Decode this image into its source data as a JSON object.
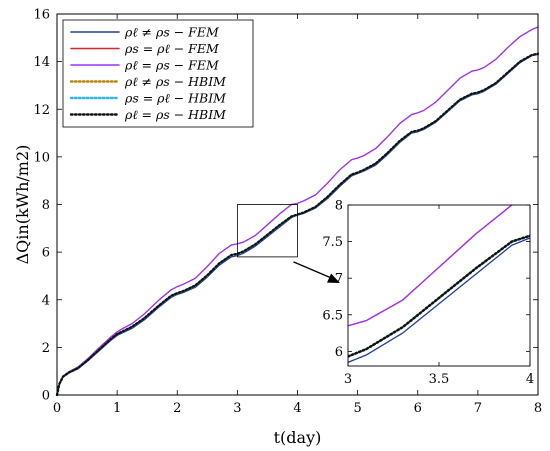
{
  "chart_data": {
    "type": "line",
    "xlabel": "t(day)",
    "ylabel": "ΔQin(kWh/m2)",
    "xlim": [
      0,
      8
    ],
    "ylim": [
      0,
      16
    ],
    "xticks": [
      0,
      1,
      2,
      3,
      4,
      5,
      6,
      7,
      8
    ],
    "yticks": [
      0,
      2,
      4,
      6,
      8,
      10,
      12,
      14,
      16
    ],
    "grid": false,
    "legend_position": "top-left",
    "series": [
      {
        "name": "ρℓ ≠ ρs − FEM",
        "color": "#1f3f99",
        "style": "solid",
        "x": [
          0,
          0.04,
          0.1,
          0.2,
          0.35,
          0.5,
          0.7,
          0.9,
          1.0,
          1.1,
          1.25,
          1.45,
          1.7,
          1.9,
          2.0,
          2.1,
          2.3,
          2.5,
          2.7,
          2.9,
          3.0,
          3.1,
          3.3,
          3.5,
          3.7,
          3.9,
          4.0,
          4.1,
          4.3,
          4.5,
          4.7,
          4.9,
          5.0,
          5.1,
          5.3,
          5.5,
          5.7,
          5.9,
          6.0,
          6.1,
          6.3,
          6.5,
          6.7,
          6.9,
          7.0,
          7.1,
          7.3,
          7.5,
          7.7,
          7.9,
          8.0
        ],
        "y": [
          0,
          0.45,
          0.75,
          0.92,
          1.1,
          1.4,
          1.85,
          2.3,
          2.5,
          2.62,
          2.8,
          3.15,
          3.7,
          4.1,
          4.22,
          4.3,
          4.52,
          4.95,
          5.45,
          5.8,
          5.85,
          5.95,
          6.25,
          6.65,
          7.05,
          7.45,
          7.55,
          7.62,
          7.85,
          8.25,
          8.75,
          9.2,
          9.3,
          9.4,
          9.65,
          10.1,
          10.6,
          11.0,
          11.05,
          11.15,
          11.45,
          11.9,
          12.35,
          12.6,
          12.65,
          12.75,
          13.05,
          13.5,
          13.95,
          14.25,
          14.3
        ]
      },
      {
        "name": "ρs = ρℓ − FEM",
        "color": "#d62728",
        "style": "solid",
        "x": [
          0,
          0.04,
          0.1,
          0.2,
          0.35,
          0.5,
          0.7,
          0.9,
          1.0,
          1.1,
          1.25,
          1.45,
          1.7,
          1.9,
          2.0,
          2.1,
          2.3,
          2.5,
          2.7,
          2.9,
          3.0,
          3.1,
          3.3,
          3.5,
          3.7,
          3.9,
          4.0,
          4.1,
          4.3,
          4.5,
          4.7,
          4.9,
          5.0,
          5.1,
          5.3,
          5.5,
          5.7,
          5.9,
          6.0,
          6.1,
          6.3,
          6.5,
          6.7,
          6.9,
          7.0,
          7.1,
          7.3,
          7.5,
          7.7,
          7.9,
          8.0
        ],
        "y": [
          0,
          0.5,
          0.8,
          0.98,
          1.18,
          1.5,
          1.98,
          2.45,
          2.65,
          2.8,
          3.0,
          3.4,
          4.0,
          4.42,
          4.55,
          4.65,
          4.9,
          5.4,
          5.95,
          6.3,
          6.35,
          6.42,
          6.7,
          7.15,
          7.6,
          8.0,
          8.05,
          8.15,
          8.4,
          8.9,
          9.45,
          9.88,
          9.95,
          10.05,
          10.35,
          10.85,
          11.4,
          11.78,
          11.85,
          11.95,
          12.3,
          12.8,
          13.3,
          13.6,
          13.65,
          13.75,
          14.1,
          14.6,
          15.05,
          15.35,
          15.45
        ]
      },
      {
        "name": "ρℓ = ρs − FEM",
        "color": "#9b30ff",
        "style": "solid",
        "x": [
          0,
          0.04,
          0.1,
          0.2,
          0.35,
          0.5,
          0.7,
          0.9,
          1.0,
          1.1,
          1.25,
          1.45,
          1.7,
          1.9,
          2.0,
          2.1,
          2.3,
          2.5,
          2.7,
          2.9,
          3.0,
          3.1,
          3.3,
          3.5,
          3.7,
          3.9,
          4.0,
          4.1,
          4.3,
          4.5,
          4.7,
          4.9,
          5.0,
          5.1,
          5.3,
          5.5,
          5.7,
          5.9,
          6.0,
          6.1,
          6.3,
          6.5,
          6.7,
          6.9,
          7.0,
          7.1,
          7.3,
          7.5,
          7.7,
          7.9,
          8.0
        ],
        "y": [
          0,
          0.5,
          0.8,
          0.98,
          1.18,
          1.5,
          1.98,
          2.45,
          2.65,
          2.8,
          3.0,
          3.4,
          4.0,
          4.42,
          4.55,
          4.65,
          4.9,
          5.4,
          5.95,
          6.3,
          6.35,
          6.42,
          6.7,
          7.15,
          7.6,
          8.0,
          8.05,
          8.15,
          8.4,
          8.9,
          9.45,
          9.88,
          9.95,
          10.05,
          10.35,
          10.85,
          11.4,
          11.78,
          11.85,
          11.95,
          12.3,
          12.8,
          13.3,
          13.6,
          13.65,
          13.75,
          14.1,
          14.6,
          15.05,
          15.35,
          15.45
        ]
      },
      {
        "name": "ρℓ ≠ ρs − HBIM",
        "color": "#b8860b",
        "style": "dotted",
        "x": [
          0,
          0.04,
          0.1,
          0.2,
          0.35,
          0.5,
          0.7,
          0.9,
          1.0,
          1.1,
          1.25,
          1.45,
          1.7,
          1.9,
          2.0,
          2.1,
          2.3,
          2.5,
          2.7,
          2.9,
          3.0,
          3.1,
          3.3,
          3.5,
          3.7,
          3.9,
          4.0,
          4.1,
          4.3,
          4.5,
          4.7,
          4.9,
          5.0,
          5.1,
          5.3,
          5.5,
          5.7,
          5.9,
          6.0,
          6.1,
          6.3,
          6.5,
          6.7,
          6.9,
          7.0,
          7.1,
          7.3,
          7.5,
          7.7,
          7.9,
          8.0
        ],
        "y": [
          0,
          0.47,
          0.77,
          0.95,
          1.13,
          1.44,
          1.9,
          2.36,
          2.56,
          2.68,
          2.87,
          3.22,
          3.77,
          4.17,
          4.28,
          4.36,
          4.6,
          5.03,
          5.53,
          5.88,
          5.93,
          6.03,
          6.33,
          6.73,
          7.13,
          7.5,
          7.58,
          7.66,
          7.9,
          8.32,
          8.82,
          9.26,
          9.34,
          9.45,
          9.72,
          10.17,
          10.67,
          11.05,
          11.1,
          11.2,
          11.5,
          11.95,
          12.4,
          12.65,
          12.7,
          12.8,
          13.1,
          13.55,
          14.0,
          14.28,
          14.33
        ]
      },
      {
        "name": "ρs = ρℓ − HBIM",
        "color": "#29b6f6",
        "style": "dotted",
        "x": [
          0,
          0.04,
          0.1,
          0.2,
          0.35,
          0.5,
          0.7,
          0.9,
          1.0,
          1.1,
          1.25,
          1.45,
          1.7,
          1.9,
          2.0,
          2.1,
          2.3,
          2.5,
          2.7,
          2.9,
          3.0,
          3.1,
          3.3,
          3.5,
          3.7,
          3.9,
          4.0,
          4.1,
          4.3,
          4.5,
          4.7,
          4.9,
          5.0,
          5.1,
          5.3,
          5.5,
          5.7,
          5.9,
          6.0,
          6.1,
          6.3,
          6.5,
          6.7,
          6.9,
          7.0,
          7.1,
          7.3,
          7.5,
          7.7,
          7.9,
          8.0
        ],
        "y": [
          0,
          0.47,
          0.77,
          0.95,
          1.13,
          1.44,
          1.9,
          2.36,
          2.56,
          2.68,
          2.87,
          3.22,
          3.77,
          4.17,
          4.28,
          4.36,
          4.6,
          5.03,
          5.53,
          5.88,
          5.93,
          6.03,
          6.33,
          6.73,
          7.13,
          7.5,
          7.58,
          7.66,
          7.9,
          8.32,
          8.82,
          9.26,
          9.34,
          9.45,
          9.72,
          10.17,
          10.67,
          11.05,
          11.1,
          11.2,
          11.5,
          11.95,
          12.4,
          12.65,
          12.7,
          12.8,
          13.1,
          13.55,
          14.0,
          14.28,
          14.33
        ]
      },
      {
        "name": "ρℓ = ρs − HBIM",
        "color": "#111111",
        "style": "dotted",
        "x": [
          0,
          0.04,
          0.1,
          0.2,
          0.35,
          0.5,
          0.7,
          0.9,
          1.0,
          1.1,
          1.25,
          1.45,
          1.7,
          1.9,
          2.0,
          2.1,
          2.3,
          2.5,
          2.7,
          2.9,
          3.0,
          3.1,
          3.3,
          3.5,
          3.7,
          3.9,
          4.0,
          4.1,
          4.3,
          4.5,
          4.7,
          4.9,
          5.0,
          5.1,
          5.3,
          5.5,
          5.7,
          5.9,
          6.0,
          6.1,
          6.3,
          6.5,
          6.7,
          6.9,
          7.0,
          7.1,
          7.3,
          7.5,
          7.7,
          7.9,
          8.0
        ],
        "y": [
          0,
          0.47,
          0.77,
          0.95,
          1.13,
          1.44,
          1.9,
          2.36,
          2.56,
          2.68,
          2.87,
          3.22,
          3.77,
          4.17,
          4.28,
          4.36,
          4.6,
          5.03,
          5.53,
          5.88,
          5.93,
          6.03,
          6.33,
          6.73,
          7.13,
          7.5,
          7.58,
          7.66,
          7.9,
          8.32,
          8.82,
          9.26,
          9.34,
          9.45,
          9.72,
          10.17,
          10.67,
          11.05,
          11.1,
          11.2,
          11.5,
          11.95,
          12.4,
          12.65,
          12.7,
          12.8,
          13.1,
          13.55,
          14.0,
          14.28,
          14.33
        ]
      }
    ],
    "inset": {
      "xlim": [
        3,
        4
      ],
      "ylim": [
        5.8,
        8
      ],
      "xticks": [
        3,
        3.5,
        4
      ],
      "xtick_labels": [
        "3",
        "3.5",
        "4"
      ],
      "yticks": [
        6,
        6.5,
        7,
        7.5,
        8
      ],
      "ytick_labels": [
        "6",
        "6.5",
        "7",
        "7.5",
        "8"
      ],
      "zoom_region": {
        "x": [
          3,
          4
        ],
        "y": [
          5.8,
          8
        ]
      }
    }
  }
}
